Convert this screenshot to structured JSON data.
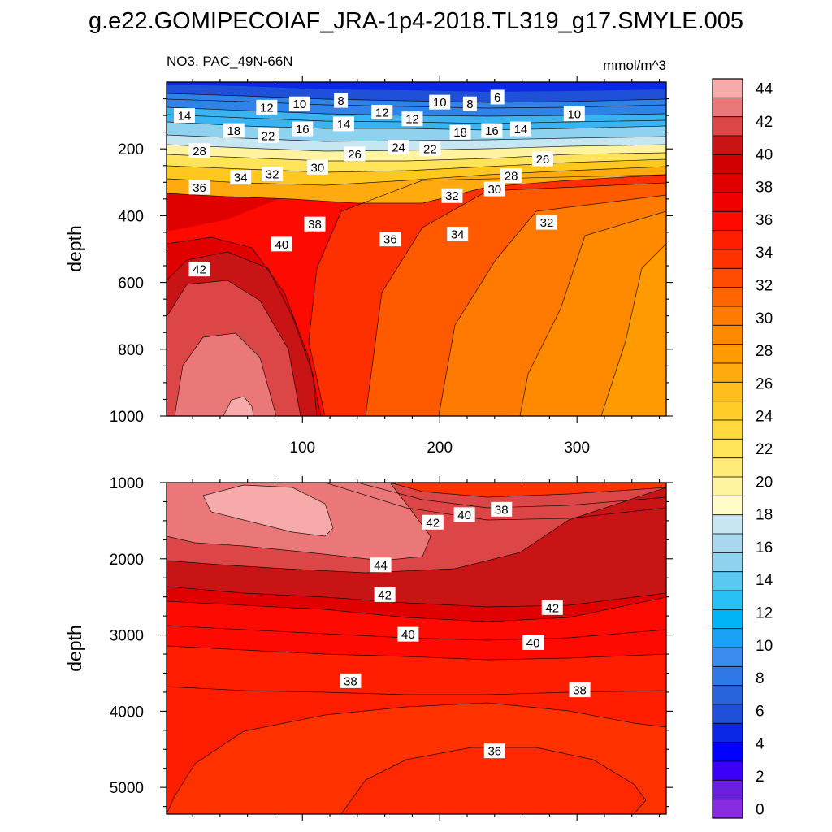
{
  "title": "g.e22.GOMIPECOIAF_JRA-1p4-2018.TL319_g17.SMYLE.005",
  "panel_top": {
    "left_label": "NO3, PAC_49N-66N",
    "right_label": "mmol/m^3",
    "ylabel": "depth"
  },
  "panel_bottom": {
    "ylabel": "depth"
  },
  "colors": {
    "ramp": [
      "#8a2be2",
      "#6a1fe0",
      "#3b00f5",
      "#0000ff",
      "#0a28e6",
      "#1e50d8",
      "#2864dc",
      "#2f78e8",
      "#3c8cf0",
      "#1aa3f5",
      "#00b4f5",
      "#28c0f5",
      "#5ac8f0",
      "#8ed2f0",
      "#a8d8f0",
      "#c6e6f2",
      "#fffcc8",
      "#fff3a0",
      "#ffec78",
      "#ffe45a",
      "#ffd83c",
      "#ffcc28",
      "#ffbe1e",
      "#ffaa0f",
      "#ff9a00",
      "#ff8a00",
      "#ff7a00",
      "#ff6400",
      "#ff4a00",
      "#ff3200",
      "#ff1e00",
      "#ff0a00",
      "#f00000",
      "#e00000",
      "#d00000",
      "#c81414",
      "#dc4646",
      "#eb7878",
      "#f7aaaa"
    ]
  },
  "chart_data": [
    {
      "type": "contour",
      "panel": "upper",
      "title": "NO3, PAC_49N-66N",
      "units": "mmol/m^3",
      "xlabel": "",
      "ylabel": "depth",
      "xlim": [
        1,
        365
      ],
      "ylim": [
        1000,
        0
      ],
      "xticks": [
        100,
        200,
        300
      ],
      "yticks": [
        200,
        400,
        600,
        800,
        1000
      ],
      "field_summary": [
        {
          "depth": 10,
          "values_by_day": {
            "20": 12,
            "120": 10,
            "240": 6,
            "340": 6
          }
        },
        {
          "depth": 100,
          "values_by_day": {
            "20": 18,
            "120": 16,
            "240": 16,
            "340": 14
          }
        },
        {
          "depth": 200,
          "values_by_day": {
            "20": 30,
            "120": 26,
            "240": 22,
            "340": 22
          }
        },
        {
          "depth": 300,
          "values_by_day": {
            "20": 36,
            "120": 34,
            "240": 28,
            "340": 26
          }
        },
        {
          "depth": 500,
          "values_by_day": {
            "20": 42,
            "120": 39,
            "240": 34,
            "340": 31
          }
        },
        {
          "depth": 800,
          "values_by_day": {
            "20": 44,
            "120": 41,
            "240": 34,
            "340": 30
          }
        },
        {
          "depth": 1000,
          "values_by_day": {
            "20": 45,
            "120": 41,
            "240": 34,
            "340": 30
          }
        }
      ],
      "contour_labels": [
        {
          "value": "14",
          "day": 14,
          "depth": 100
        },
        {
          "value": "12",
          "day": 74,
          "depth": 75
        },
        {
          "value": "10",
          "day": 98,
          "depth": 65
        },
        {
          "value": "8",
          "day": 128,
          "depth": 55
        },
        {
          "value": "12",
          "day": 158,
          "depth": 90
        },
        {
          "value": "10",
          "day": 200,
          "depth": 60
        },
        {
          "value": "8",
          "day": 222,
          "depth": 65
        },
        {
          "value": "6",
          "day": 242,
          "depth": 45
        },
        {
          "value": "10",
          "day": 298,
          "depth": 95
        },
        {
          "value": "18",
          "day": 50,
          "depth": 145
        },
        {
          "value": "22",
          "day": 75,
          "depth": 160
        },
        {
          "value": "16",
          "day": 100,
          "depth": 140
        },
        {
          "value": "14",
          "day": 130,
          "depth": 125
        },
        {
          "value": "12",
          "day": 180,
          "depth": 110
        },
        {
          "value": "18",
          "day": 215,
          "depth": 150
        },
        {
          "value": "16",
          "day": 238,
          "depth": 145
        },
        {
          "value": "14",
          "day": 259,
          "depth": 140
        },
        {
          "value": "28",
          "day": 25,
          "depth": 205
        },
        {
          "value": "26",
          "day": 138,
          "depth": 215
        },
        {
          "value": "24",
          "day": 170,
          "depth": 195
        },
        {
          "value": "22",
          "day": 193,
          "depth": 200
        },
        {
          "value": "26",
          "day": 275,
          "depth": 230
        },
        {
          "value": "36",
          "day": 25,
          "depth": 315
        },
        {
          "value": "34",
          "day": 55,
          "depth": 285
        },
        {
          "value": "32",
          "day": 78,
          "depth": 275
        },
        {
          "value": "30",
          "day": 111,
          "depth": 255
        },
        {
          "value": "28",
          "day": 252,
          "depth": 280
        },
        {
          "value": "30",
          "day": 240,
          "depth": 320
        },
        {
          "value": "32",
          "day": 209,
          "depth": 340
        },
        {
          "value": "38",
          "day": 109,
          "depth": 425
        },
        {
          "value": "40",
          "day": 85,
          "depth": 485
        },
        {
          "value": "36",
          "day": 164,
          "depth": 470
        },
        {
          "value": "34",
          "day": 213,
          "depth": 455
        },
        {
          "value": "32",
          "day": 278,
          "depth": 420
        },
        {
          "value": "42",
          "day": 25,
          "depth": 560
        }
      ]
    },
    {
      "type": "contour",
      "panel": "lower",
      "ylabel": "depth",
      "xlim": [
        1,
        365
      ],
      "ylim": [
        5350,
        1000
      ],
      "yticks": [
        1000,
        2000,
        3000,
        4000,
        5000
      ],
      "field_summary": [
        {
          "depth": 1200,
          "values_by_day": {
            "40": 45,
            "200": 40,
            "340": 32
          }
        },
        {
          "depth": 2000,
          "values_by_day": {
            "40": 44,
            "200": 44,
            "340": 42
          }
        },
        {
          "depth": 2500,
          "values_by_day": {
            "40": 42,
            "200": 42,
            "340": 41
          }
        },
        {
          "depth": 3000,
          "values_by_day": {
            "40": 40,
            "200": 40,
            "340": 40
          }
        },
        {
          "depth": 4000,
          "values_by_day": {
            "40": 38,
            "200": 37,
            "340": 38
          }
        },
        {
          "depth": 5000,
          "values_by_day": {
            "40": 37,
            "200": 35,
            "340": 36
          }
        }
      ],
      "contour_labels": [
        {
          "value": "38",
          "day": 245,
          "depth": 1350
        },
        {
          "value": "40",
          "day": 218,
          "depth": 1420
        },
        {
          "value": "42",
          "day": 195,
          "depth": 1520
        },
        {
          "value": "44",
          "day": 157,
          "depth": 2080
        },
        {
          "value": "42",
          "day": 160,
          "depth": 2470
        },
        {
          "value": "42",
          "day": 282,
          "depth": 2640
        },
        {
          "value": "40",
          "day": 177,
          "depth": 2990
        },
        {
          "value": "40",
          "day": 268,
          "depth": 3100
        },
        {
          "value": "38",
          "day": 135,
          "depth": 3600
        },
        {
          "value": "38",
          "day": 302,
          "depth": 3720
        },
        {
          "value": "36",
          "day": 240,
          "depth": 4520
        }
      ]
    },
    {
      "type": "colorbar",
      "labels": [
        "0",
        "2",
        "4",
        "6",
        "8",
        "10",
        "12",
        "14",
        "16",
        "18",
        "20",
        "22",
        "24",
        "26",
        "28",
        "30",
        "32",
        "34",
        "36",
        "38",
        "40",
        "42",
        "44"
      ]
    }
  ]
}
